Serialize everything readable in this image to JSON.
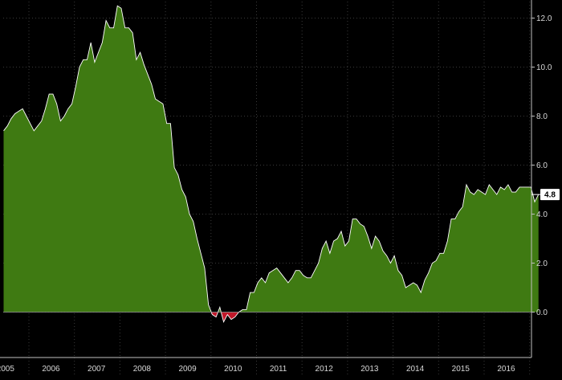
{
  "chart_data": {
    "type": "area",
    "title": "",
    "xlabel": "",
    "ylabel": "",
    "x_start": "2005-01",
    "x_end": "2016-10",
    "ylim": [
      -1.8,
      12.8
    ],
    "y_ticks": [
      "0.0",
      "2.0",
      "4.0",
      "6.0",
      "8.0",
      "10.0",
      "12.0"
    ],
    "x_ticks": [
      "2005",
      "2006",
      "2007",
      "2008",
      "2009",
      "2010",
      "2011",
      "2012",
      "2013",
      "2014",
      "2015",
      "2016"
    ],
    "last_value_label": "4.8",
    "colors": {
      "positive": "#3f7a12",
      "negative": "#c0182a",
      "line": "#ffffff",
      "background": "#000000"
    },
    "grid": true,
    "series": [
      {
        "values": [
          7.4,
          7.6,
          7.9,
          8.1,
          8.2,
          8.3,
          8.0,
          7.7,
          7.4,
          7.6,
          7.8,
          8.3,
          8.9,
          8.9,
          8.5,
          7.8,
          8.0,
          8.3,
          8.5,
          9.2,
          10.0,
          10.3,
          10.3,
          11.0,
          10.2,
          10.6,
          11.0,
          11.9,
          11.6,
          11.6,
          12.5,
          12.4,
          11.6,
          11.6,
          11.4,
          10.3,
          10.6,
          10.1,
          9.7,
          9.3,
          8.7,
          8.6,
          8.5,
          7.7,
          7.7,
          5.9,
          5.6,
          5.0,
          4.7,
          4.0,
          3.7,
          3.0,
          2.4,
          1.8,
          0.3,
          -0.1,
          -0.2,
          0.2,
          -0.4,
          -0.1,
          -0.3,
          -0.2,
          0.0,
          0.1,
          0.1,
          0.8,
          0.8,
          1.2,
          1.4,
          1.2,
          1.6,
          1.7,
          1.8,
          1.6,
          1.4,
          1.2,
          1.4,
          1.7,
          1.7,
          1.5,
          1.4,
          1.4,
          1.7,
          2.0,
          2.6,
          2.9,
          2.4,
          2.9,
          3.0,
          3.3,
          2.7,
          2.9,
          3.8,
          3.8,
          3.6,
          3.5,
          3.1,
          2.6,
          3.1,
          2.9,
          2.5,
          2.3,
          2.0,
          2.3,
          1.7,
          1.5,
          1.0,
          1.1,
          1.2,
          1.1,
          0.8,
          1.3,
          1.6,
          2.0,
          2.1,
          2.4,
          2.4,
          2.9,
          3.8,
          3.8,
          4.1,
          4.3,
          5.2,
          4.9,
          4.8,
          5.0,
          4.9,
          4.8,
          5.2,
          5.0,
          4.8,
          5.1,
          5.0,
          5.2,
          4.9,
          4.9,
          5.1,
          5.1,
          5.1,
          5.1,
          4.5,
          4.8
        ]
      }
    ]
  }
}
